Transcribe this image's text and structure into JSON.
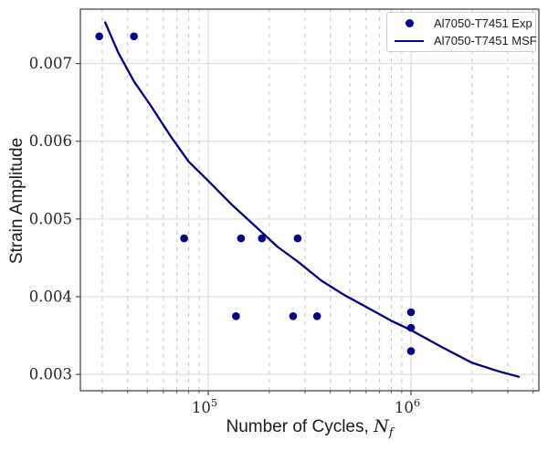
{
  "chart_data": {
    "type": "scatter",
    "title": "",
    "ylabel": "Strain Amplitude",
    "xlabel": {
      "text": "Number of Cycles,",
      "math_var": "N",
      "math_sub": "f"
    },
    "x_axis": {
      "scale": "log",
      "min": 23400,
      "max": 4270000,
      "major_ticks": [
        {
          "value": 100000,
          "base": "10",
          "exp": "5"
        },
        {
          "value": 1000000,
          "base": "10",
          "exp": "6"
        }
      ],
      "minor_ticks": [
        30000,
        40000,
        50000,
        60000,
        70000,
        80000,
        90000,
        200000,
        300000,
        400000,
        500000,
        600000,
        700000,
        800000,
        900000,
        2000000,
        3000000,
        4000000
      ]
    },
    "y_axis": {
      "scale": "linear",
      "min": 0.00279,
      "max": 0.0077,
      "major_ticks": [
        {
          "value": 0.003,
          "label": "0.003"
        },
        {
          "value": 0.004,
          "label": "0.004"
        },
        {
          "value": 0.005,
          "label": "0.005"
        },
        {
          "value": 0.006,
          "label": "0.006"
        },
        {
          "value": 0.007,
          "label": "0.007"
        }
      ]
    },
    "grid": {
      "y_major": "solid",
      "x_major": "solid",
      "x_minor": "dashed"
    },
    "series": [
      {
        "name": "Al7050-T7451 Exp",
        "type": "scatter",
        "marker": "circle",
        "points": [
          [
            29000,
            0.00735
          ],
          [
            43000,
            0.00735
          ],
          [
            76000,
            0.00475
          ],
          [
            145000,
            0.00475
          ],
          [
            184000,
            0.00475
          ],
          [
            276000,
            0.00475
          ],
          [
            137000,
            0.00375
          ],
          [
            262000,
            0.00375
          ],
          [
            344000,
            0.00375
          ],
          [
            1000000,
            0.0038
          ],
          [
            1000000,
            0.0036
          ],
          [
            1000000,
            0.0033
          ]
        ]
      },
      {
        "name": "Al7050-T7451 MSF",
        "type": "line",
        "points": [
          [
            31000,
            0.00753
          ],
          [
            36000,
            0.00714
          ],
          [
            43000,
            0.00677
          ],
          [
            52000,
            0.00646
          ],
          [
            65000,
            0.00607
          ],
          [
            80000,
            0.00574
          ],
          [
            100000,
            0.00549
          ],
          [
            130000,
            0.00519
          ],
          [
            170000,
            0.00491
          ],
          [
            220000,
            0.00464
          ],
          [
            280000,
            0.00444
          ],
          [
            360000,
            0.00421
          ],
          [
            470000,
            0.00402
          ],
          [
            600000,
            0.00387
          ],
          [
            800000,
            0.00369
          ],
          [
            1000000,
            0.00357
          ],
          [
            1400000,
            0.00336
          ],
          [
            2000000,
            0.00315
          ],
          [
            2700000,
            0.00304
          ],
          [
            3400000,
            0.00297
          ]
        ]
      }
    ],
    "legend": {
      "position": "upper right",
      "entries": [
        "Al7050-T7451 Exp",
        "Al7050-T7451 MSF"
      ]
    },
    "colors": {
      "series": "#00008b",
      "grid_major": "#d9d9d9",
      "grid_minor": "#c6c6c6",
      "spine": "#3a3a3a",
      "tick_text": "#262626"
    }
  }
}
